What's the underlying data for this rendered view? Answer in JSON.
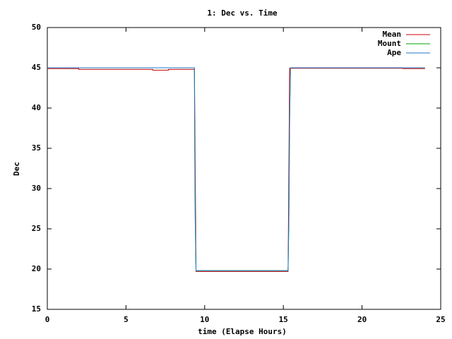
{
  "chart_data": {
    "type": "line",
    "title": "1: Dec vs. Time",
    "x_label": "time (Elapse Hours)",
    "y_label": "Dec",
    "xlim": [
      0,
      25
    ],
    "xticks": [
      0,
      5,
      10,
      15,
      20,
      25
    ],
    "ylim": [
      15,
      50
    ],
    "yticks": [
      15,
      20,
      25,
      30,
      35,
      40,
      45,
      50
    ],
    "grid": false,
    "legend": "top-right",
    "series": [
      {
        "name": "Mean",
        "color": "#cc0000",
        "x": [
          0,
          2,
          2,
          6.7,
          6.7,
          7.7,
          7.7,
          9.35,
          9.45,
          15.3,
          15.4,
          22.6,
          22.6,
          24
        ],
        "values": [
          44.9,
          44.9,
          44.8,
          44.8,
          44.7,
          44.7,
          44.8,
          44.8,
          19.7,
          19.7,
          44.95,
          44.95,
          44.9,
          44.9
        ]
      },
      {
        "name": "Mount",
        "color": "#00a000",
        "x": [
          0,
          9.35,
          9.36,
          9.4,
          9.45,
          15.3,
          15.35,
          15.4,
          15.45,
          24
        ],
        "values": [
          45,
          45,
          38.7,
          26,
          19.8,
          19.8,
          26,
          38.7,
          45,
          45
        ]
      },
      {
        "name": "Ape",
        "color": "#1f78c8",
        "x": [
          0,
          9.35,
          9.36,
          9.4,
          9.45,
          15.3,
          15.35,
          15.4,
          15.45,
          24
        ],
        "values": [
          45,
          45,
          38.7,
          26,
          19.8,
          19.8,
          26,
          38.7,
          45,
          45
        ]
      }
    ]
  }
}
